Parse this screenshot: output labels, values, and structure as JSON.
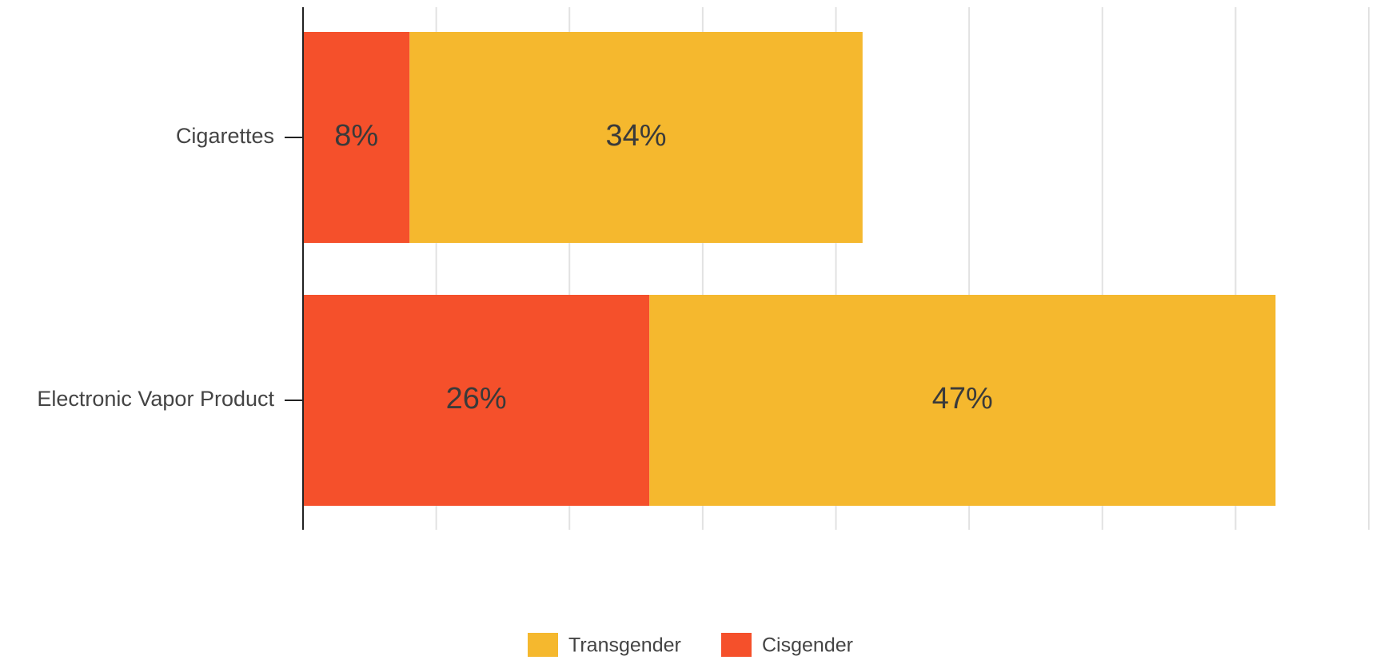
{
  "chart_data": {
    "type": "stacked_barh",
    "categories": [
      "Cigarettes",
      "Electronic Vapor Product"
    ],
    "series": [
      {
        "name": "Cisgender",
        "color": "#f5502b",
        "values": [
          8,
          26
        ],
        "value_labels": [
          "8%",
          "26%"
        ]
      },
      {
        "name": "Transgender",
        "color": "#f5b82e",
        "values": [
          34,
          47
        ],
        "value_labels": [
          "34%",
          "47%"
        ]
      }
    ],
    "xlim": [
      0,
      80
    ],
    "xticks": [
      0,
      10,
      20,
      30,
      40,
      50,
      60,
      70,
      80
    ],
    "grid": true,
    "legend": "bottom"
  }
}
